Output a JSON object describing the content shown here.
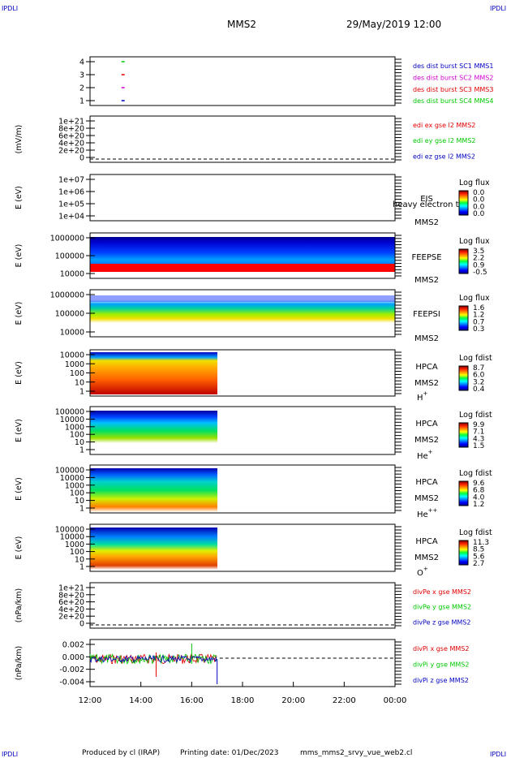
{
  "corner_labels": [
    "IPDLI",
    "IPDLI",
    "IPDLI",
    "IPDLI"
  ],
  "header": {
    "mission": "MMS2",
    "datetime": "29/May/2019 12:00"
  },
  "footer": {
    "producer": "Produced by cl (IRAP)",
    "printing": "Printing date: 01/Dec/2023",
    "file": "mms_mms2_srvy_vue_web2.cl"
  },
  "colors": {
    "red": "#e00000",
    "green": "#00c800",
    "blue": "#0000c0",
    "magenta": "#d000d0"
  },
  "chart_data": {
    "type": "line",
    "x": {
      "ticks": [
        "12:00",
        "14:00",
        "16:00",
        "18:00",
        "20:00",
        "22:00",
        "00:00"
      ]
    },
    "panels": [
      {
        "ylabel": "",
        "yticks": [
          "4",
          "3",
          "2",
          "1"
        ],
        "legend": [
          {
            "text": "des dist burst SC1 MMS1",
            "color": "#0000c0"
          },
          {
            "text": "des dist burst SC2 MMS2",
            "color": "#d000d0"
          },
          {
            "text": "des dist burst SC3 MMS3",
            "color": "#e00000"
          },
          {
            "text": "des dist burst SC4 MMS4",
            "color": "#00c800"
          }
        ],
        "series": [
          {
            "y": 4,
            "x_hour": 13.3,
            "color": "#00c800"
          },
          {
            "y": 3,
            "x_hour": 13.3,
            "color": "#e00000"
          },
          {
            "y": 2,
            "x_hour": 13.3,
            "color": "#d000d0"
          },
          {
            "y": 1,
            "x_hour": 13.3,
            "color": "#0000c0"
          }
        ]
      },
      {
        "ylabel": "(mV/m)",
        "yticks": [
          "1e+21",
          "8e+20",
          "6e+20",
          "4e+20",
          "2e+20",
          "0"
        ],
        "legend": [
          {
            "text": "edi ex gse l2 MMS2",
            "color": "#e00000"
          },
          {
            "text": "edi ey gse l2 MMS2",
            "color": "#00c800"
          },
          {
            "text": "edi ez gse l2 MMS2",
            "color": "#0000c0"
          }
        ]
      },
      {
        "ylabel": "E (eV)",
        "yticks": [
          "1e+07",
          "1e+06",
          "1e+05",
          "1e+04"
        ],
        "name": [
          "EIS",
          "MMS2"
        ],
        "overlay": "heavy electron to",
        "cbar_title": "Log flux",
        "cbar_ticks": [
          "0.0",
          "0.0",
          "0.0",
          "0.0"
        ]
      },
      {
        "ylabel": "E (eV)",
        "yticks": [
          "1000000",
          "100000",
          "10000"
        ],
        "name": [
          "FEEPSE",
          "MMS2"
        ],
        "cbar_title": "Log flux",
        "cbar_ticks": [
          "3.5",
          "2.2",
          "0.9",
          "-0.5"
        ]
      },
      {
        "ylabel": "E (eV)",
        "yticks": [
          "1000000",
          "100000",
          "10000"
        ],
        "name": [
          "FEEPSI",
          "MMS2"
        ],
        "cbar_title": "Log flux",
        "cbar_ticks": [
          "1.6",
          "1.2",
          "0.7",
          "0.3"
        ]
      },
      {
        "ylabel": "E (eV)",
        "yticks": [
          "10000",
          "1000",
          "100",
          "10",
          "1"
        ],
        "name": [
          "HPCA",
          "MMS2"
        ],
        "species": "H",
        "species_sup": "+",
        "cbar_title": "Log fdist",
        "cbar_ticks": [
          "8.7",
          "6.0",
          "3.2",
          "0.4"
        ]
      },
      {
        "ylabel": "E (eV)",
        "yticks": [
          "100000",
          "10000",
          "1000",
          "100",
          "10",
          "1"
        ],
        "name": [
          "HPCA",
          "MMS2"
        ],
        "species": "He",
        "species_sup": "+",
        "cbar_title": "Log fdist",
        "cbar_ticks": [
          "9.9",
          "7.1",
          "4.3",
          "1.5"
        ]
      },
      {
        "ylabel": "E (eV)",
        "yticks": [
          "100000",
          "10000",
          "1000",
          "100",
          "10",
          "1"
        ],
        "name": [
          "HPCA",
          "MMS2"
        ],
        "species": "He",
        "species_sup": "++",
        "cbar_title": "Log fdist",
        "cbar_ticks": [
          "9.6",
          "6.8",
          "4.0",
          "1.2"
        ]
      },
      {
        "ylabel": "E (eV)",
        "yticks": [
          "100000",
          "10000",
          "1000",
          "100",
          "10",
          "1"
        ],
        "name": [
          "HPCA",
          "MMS2"
        ],
        "species": "O",
        "species_sup": "+",
        "cbar_title": "Log fdist",
        "cbar_ticks": [
          "11.3",
          "8.5",
          "5.6",
          "2.7"
        ]
      },
      {
        "ylabel": "(nPa/km)",
        "yticks": [
          "1e+21",
          "8e+20",
          "6e+20",
          "4e+20",
          "2e+20",
          "0"
        ],
        "legend": [
          {
            "text": "divPe x gse MMS2",
            "color": "#e00000"
          },
          {
            "text": "divPe y gse MMS2",
            "color": "#00c800"
          },
          {
            "text": "divPe z gse MMS2",
            "color": "#0000c0"
          }
        ]
      },
      {
        "ylabel": "(nPa/km)",
        "yticks": [
          "0.002",
          "0.000",
          "-0.002",
          "-0.004"
        ],
        "yvalues": [
          0.002,
          0.0,
          -0.002,
          -0.004
        ],
        "data_end_hour": 17.0,
        "legend": [
          {
            "text": "divPi x gse MMS2",
            "color": "#e00000"
          },
          {
            "text": "divPi y gse MMS2",
            "color": "#00c800"
          },
          {
            "text": "divPi z gse MMS2",
            "color": "#0000c0"
          }
        ]
      }
    ]
  }
}
